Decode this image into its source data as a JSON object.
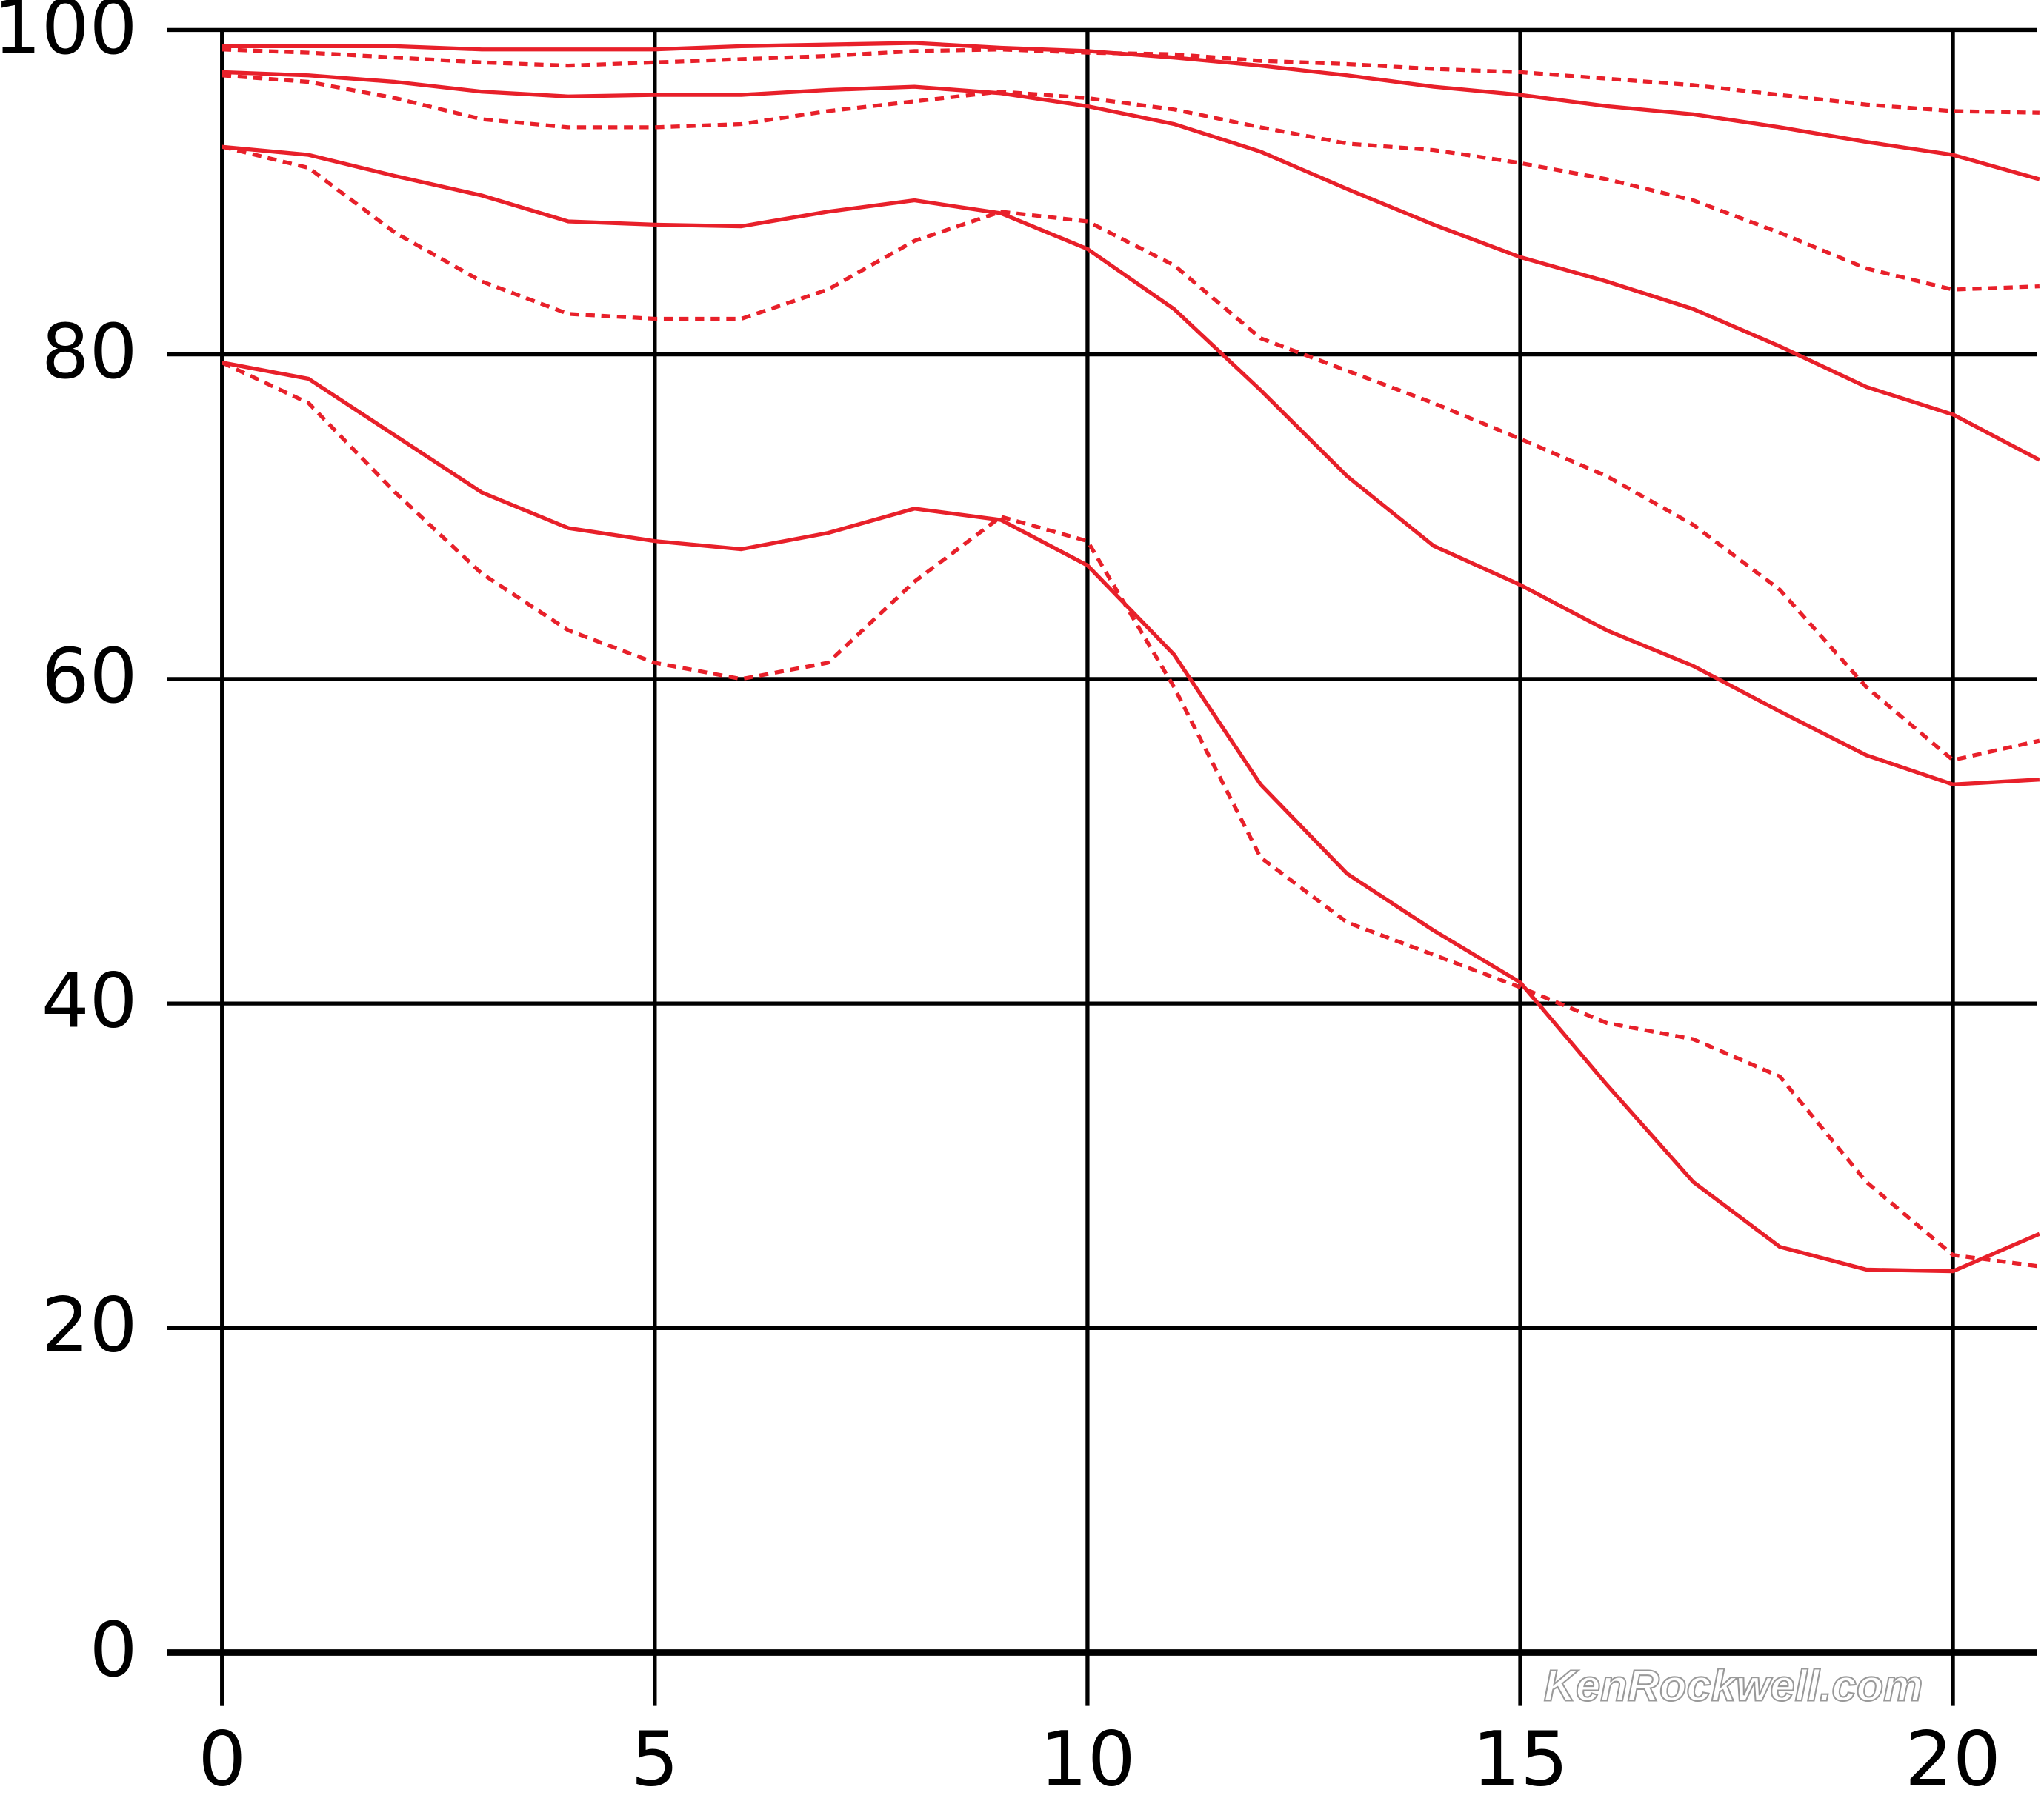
{
  "chart_data": {
    "type": "line",
    "annotation": "KenRockwell.com",
    "x": [
      0,
      1,
      2,
      3,
      4,
      5,
      6,
      7,
      8,
      9,
      10,
      11,
      12,
      13,
      14,
      15,
      16,
      17,
      18,
      19,
      20,
      21
    ],
    "series": [
      {
        "color": "#e8202a",
        "dashed": false,
        "values": [
          99,
          99,
          99,
          98.8,
          98.8,
          98.8,
          99,
          99.1,
          99.2,
          98.9,
          98.7,
          98.3,
          97.8,
          97.2,
          96.5,
          96,
          95.3,
          94.8,
          94,
          93.1,
          92.3,
          90.8
        ]
      },
      {
        "color": "#e8202a",
        "dashed": true,
        "values": [
          98.8,
          98.6,
          98.3,
          98,
          97.8,
          98,
          98.2,
          98.4,
          98.7,
          98.8,
          98.6,
          98.5,
          98.1,
          97.9,
          97.6,
          97.4,
          97,
          96.6,
          96,
          95.4,
          95,
          94.9
        ]
      },
      {
        "color": "#e8202a",
        "dashed": false,
        "values": [
          97.4,
          97.2,
          96.8,
          96.2,
          95.9,
          96,
          96,
          96.3,
          96.5,
          96.1,
          95.3,
          94.2,
          92.5,
          90.2,
          88,
          86,
          84.5,
          82.8,
          80.5,
          78,
          76.3,
          73.5
        ]
      },
      {
        "color": "#e8202a",
        "dashed": true,
        "values": [
          97.2,
          96.8,
          95.8,
          94.5,
          94,
          94,
          94.2,
          95,
          95.6,
          96.2,
          95.8,
          95.1,
          94,
          93,
          92.6,
          91.8,
          90.8,
          89.5,
          87.5,
          85.3,
          84,
          84.2
        ]
      },
      {
        "color": "#e8202a",
        "dashed": false,
        "values": [
          92.8,
          92.3,
          91,
          89.8,
          88.2,
          88,
          87.9,
          88.8,
          89.5,
          88.7,
          86.5,
          82.8,
          77.8,
          72.5,
          68.2,
          65.8,
          63,
          60.8,
          58,
          55.3,
          53.5,
          53.8
        ]
      },
      {
        "color": "#e8202a",
        "dashed": true,
        "values": [
          92.8,
          91.5,
          87.5,
          84.5,
          82.5,
          82.2,
          82.2,
          84,
          87,
          88.8,
          88.2,
          85.5,
          81,
          79,
          77,
          74.8,
          72.5,
          69.5,
          65.5,
          59.5,
          55,
          56.2
        ]
      },
      {
        "color": "#e8202a",
        "dashed": false,
        "values": [
          79.5,
          78.5,
          75,
          71.5,
          69.3,
          68.5,
          68,
          69,
          70.5,
          69.8,
          67,
          61.5,
          53.5,
          48,
          44.5,
          41.3,
          35,
          29,
          25,
          23.6,
          23.5,
          25.8
        ]
      },
      {
        "color": "#e8202a",
        "dashed": true,
        "values": [
          79.5,
          77,
          71.5,
          66.5,
          63,
          61,
          60,
          61,
          66,
          70,
          68.5,
          59.5,
          49,
          45,
          43,
          41,
          38.8,
          37.8,
          35.5,
          29,
          24.5,
          23.8
        ]
      }
    ],
    "xlim": [
      0,
      21
    ],
    "xticks": [
      0,
      5,
      10,
      15,
      20
    ],
    "ylim": [
      0,
      100
    ],
    "yticks": [
      0,
      20,
      40,
      60,
      80,
      100
    ],
    "grid": true
  }
}
